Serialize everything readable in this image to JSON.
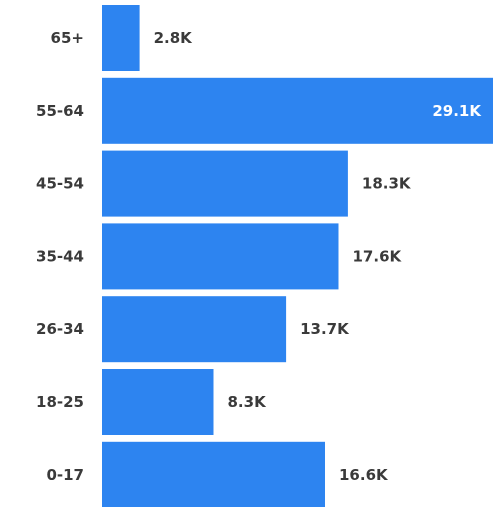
{
  "chart_data": {
    "type": "bar",
    "orientation": "horizontal",
    "categories": [
      "65+",
      "55-64",
      "45-54",
      "35-44",
      "26-34",
      "18-25",
      "0-17"
    ],
    "values": [
      2800,
      29100,
      18300,
      17600,
      13700,
      8300,
      16600
    ],
    "data_labels": [
      "2.8K",
      "29.1K",
      "18.3K",
      "17.6K",
      "13.7K",
      "8.3K",
      "16.6K"
    ],
    "title": "",
    "xlabel": "",
    "ylabel": "",
    "xlim": [
      0,
      29100
    ],
    "grid": false,
    "legend": "none",
    "bar_color": "#2d84f0",
    "label_color": "#3a3a3a",
    "inside_label_color": "#ffffff"
  }
}
